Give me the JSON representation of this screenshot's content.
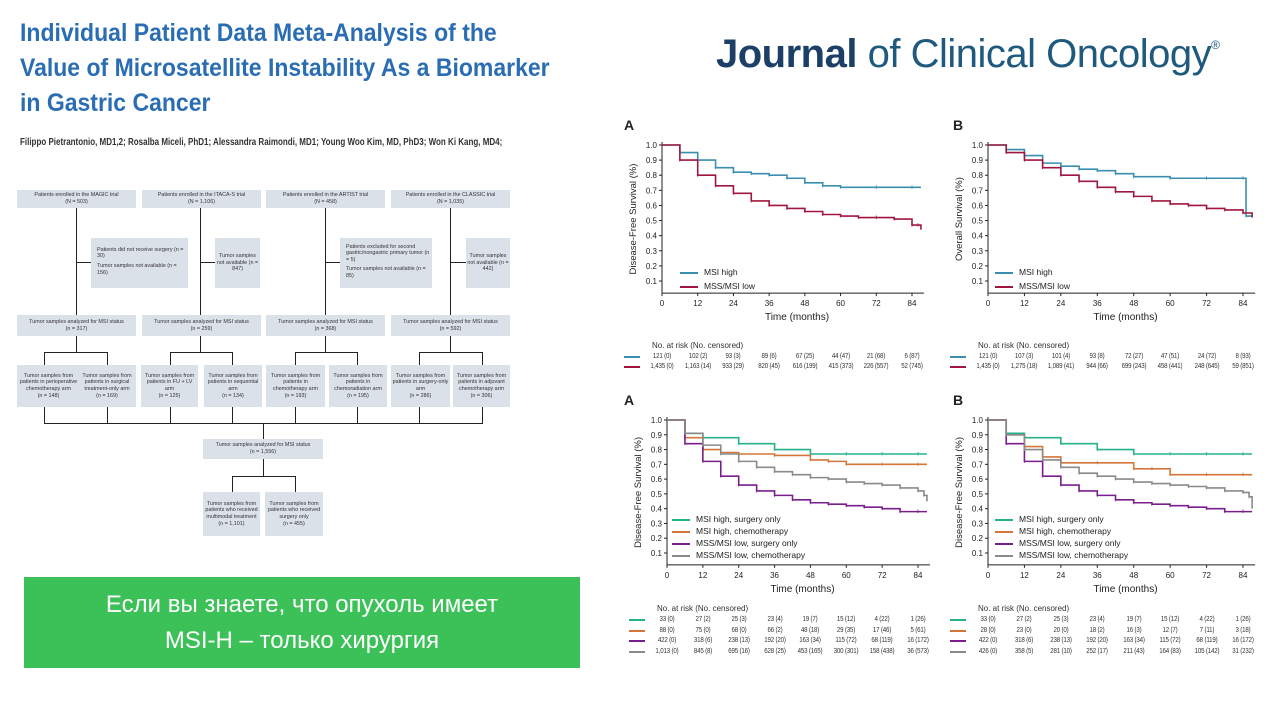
{
  "title": {
    "lines": [
      "Individual Patient Data Meta-Analysis of the",
      "Value of Microsatellite Instability As a Biomarker",
      "in Gastric Cancer"
    ]
  },
  "authors": "Filippo Pietrantonio, MD1,2; Rosalba Miceli, PhD1; Alessandra Raimondi, MD1; Young Woo Kim, MD, PhD3; Won Ki Kang, MD4;",
  "logo": {
    "bold": "Journal",
    "rest": " of Clinical Oncology",
    "mark": "®"
  },
  "flowchart": {
    "enrolled": [
      [
        "Patients enrolled in the MAGIC trial",
        "(N = 503)"
      ],
      [
        "Patients enrolled in the ITACA-S trial",
        "(N = 1,106)"
      ],
      [
        "Patients enrolled in the ARTIST trial",
        "(N = 458)"
      ],
      [
        "Patients enrolled in the CLASSIC trial",
        "(N = 1,035)"
      ]
    ],
    "excluded": [
      [
        "Patients did not receive surgery   (n = 30)",
        "Tumor samples not available   (n = 156)"
      ],
      [
        "Tumor samples not available (n = 847)"
      ],
      [
        "Patients excluded for second gastric/nongastric primary tumor   (n = 5)",
        "Tumor samples not available   (n = 85)"
      ],
      [
        "Tumor samples not available (n = 442)"
      ]
    ],
    "analyzed": [
      [
        "Tumor samples analyzed for MSI status",
        "(n = 317)"
      ],
      [
        "Tumor samples analyzed for MSI status",
        "(n = 259)"
      ],
      [
        "Tumor samples analyzed for MSI status",
        "(n = 368)"
      ],
      [
        "Tumor samples analyzed for MSI status",
        "(n = 592)"
      ]
    ],
    "arms": [
      [
        "Tumor samples from patients in perioperative chemotherapy arm",
        "(n = 148)"
      ],
      [
        "Tumor samples from patients in surgical treatment-only arm",
        "(n = 169)"
      ],
      [
        "Tumor samples from patients in FU + LV arm",
        "(n = 125)"
      ],
      [
        "Tumor samples from patients in sequential arm",
        "(n = 134)"
      ],
      [
        "Tumor samples from patients in chemotherapy arm",
        "(n = 193)"
      ],
      [
        "Tumor samples from patients in chemoradiation arm",
        "(n = 195)"
      ],
      [
        "Tumor samples from patients in surgery-only arm",
        "(n = 286)"
      ],
      [
        "Tumor samples from patients in adjuvant chemotherapy arm",
        "(n = 306)"
      ]
    ],
    "total": [
      "Tumor samples analyzed for MSI status",
      "(n = 1,556)"
    ],
    "final": [
      [
        "Tumor samples from patients who received multimodal treatment",
        "(n = 1,101)"
      ],
      [
        "Tumor samples from patients who received surgery only",
        "(n = 455)"
      ]
    ]
  },
  "banner": {
    "lines": [
      "Если вы знаете, что опухоль имеет",
      "MSI-H – только хирургия"
    ]
  },
  "chart_data": [
    {
      "panel": "A",
      "type": "line",
      "ylabel": "Disease-Free Survival (%)",
      "xlabel": "Time (months)",
      "xticks": [
        0,
        12,
        24,
        36,
        48,
        60,
        72,
        84
      ],
      "yticks": [
        0.1,
        0.2,
        0.3,
        0.4,
        0.5,
        0.6,
        0.7,
        0.8,
        0.9,
        1.0
      ],
      "xlim": [
        0,
        87
      ],
      "ylim": [
        0,
        1
      ],
      "risk_header": "No. at risk (No. censored)",
      "series": [
        {
          "name": "MSI high",
          "color": "#3a8fb0",
          "x": [
            0,
            6,
            12,
            18,
            24,
            30,
            36,
            42,
            48,
            54,
            60,
            72,
            84,
            87
          ],
          "y": [
            1,
            0.95,
            0.9,
            0.85,
            0.82,
            0.81,
            0.8,
            0.78,
            0.75,
            0.73,
            0.72,
            0.72,
            0.72,
            0.72
          ],
          "risk": [
            "121 (0)",
            "102 (2)",
            "93 (3)",
            "89 (6)",
            "67 (25)",
            "44 (47)",
            "21 (68)",
            "6 (87)"
          ]
        },
        {
          "name": "MSS/MSI low",
          "color": "#a0163f",
          "x": [
            0,
            6,
            12,
            18,
            24,
            30,
            36,
            42,
            48,
            54,
            60,
            66,
            72,
            78,
            84,
            86,
            87
          ],
          "y": [
            1,
            0.9,
            0.8,
            0.73,
            0.68,
            0.63,
            0.6,
            0.58,
            0.56,
            0.54,
            0.53,
            0.52,
            0.52,
            0.51,
            0.47,
            0.47,
            0.44
          ],
          "risk": [
            "1,435 (0)",
            "1,163 (14)",
            "933 (29)",
            "820 (45)",
            "616 (199)",
            "415 (373)",
            "226 (557)",
            "52 (745)"
          ]
        }
      ]
    },
    {
      "panel": "B",
      "type": "line",
      "ylabel": "Overall Survival (%)",
      "xlabel": "Time (months)",
      "xticks": [
        0,
        12,
        24,
        36,
        48,
        60,
        72,
        84
      ],
      "yticks": [
        0.1,
        0.2,
        0.3,
        0.4,
        0.5,
        0.6,
        0.7,
        0.8,
        0.9,
        1.0
      ],
      "xlim": [
        0,
        87
      ],
      "ylim": [
        0,
        1
      ],
      "risk_header": "No. at risk (No. censored)",
      "series": [
        {
          "name": "MSI high",
          "color": "#3a8fb0",
          "x": [
            0,
            6,
            12,
            18,
            24,
            30,
            36,
            42,
            48,
            60,
            72,
            84,
            85,
            87
          ],
          "y": [
            1,
            0.97,
            0.93,
            0.88,
            0.86,
            0.84,
            0.83,
            0.81,
            0.79,
            0.78,
            0.78,
            0.78,
            0.53,
            0.53
          ],
          "risk": [
            "121 (0)",
            "107 (3)",
            "101 (4)",
            "93 (8)",
            "72 (27)",
            "47 (51)",
            "24 (72)",
            "8 (93)"
          ]
        },
        {
          "name": "MSS/MSI low",
          "color": "#a0163f",
          "x": [
            0,
            6,
            12,
            18,
            24,
            30,
            36,
            42,
            48,
            54,
            60,
            66,
            72,
            78,
            84,
            87
          ],
          "y": [
            1,
            0.95,
            0.9,
            0.85,
            0.8,
            0.76,
            0.72,
            0.69,
            0.66,
            0.63,
            0.61,
            0.6,
            0.58,
            0.57,
            0.55,
            0.52
          ],
          "risk": [
            "1,435 (0)",
            "1,275 (18)",
            "1,089 (41)",
            "944 (66)",
            "699 (243)",
            "458 (441)",
            "248 (645)",
            "59 (851)"
          ]
        }
      ]
    },
    {
      "panel": "A",
      "type": "line",
      "ylabel": "Disease-Free Survival (%)",
      "xlabel": "Time (months)",
      "xticks": [
        0,
        12,
        24,
        36,
        48,
        60,
        72,
        84
      ],
      "yticks": [
        0.1,
        0.2,
        0.3,
        0.4,
        0.5,
        0.6,
        0.7,
        0.8,
        0.9,
        1.0
      ],
      "xlim": [
        0,
        87
      ],
      "ylim": [
        0,
        1
      ],
      "risk_header": "No. at risk (No. censored)",
      "series": [
        {
          "name": "MSI high, surgery only",
          "color": "#23b28a",
          "x": [
            0,
            6,
            12,
            24,
            36,
            48,
            60,
            72,
            84,
            87
          ],
          "y": [
            1,
            0.91,
            0.88,
            0.84,
            0.8,
            0.77,
            0.77,
            0.77,
            0.77,
            0.77
          ],
          "risk": [
            "33 (0)",
            "27 (2)",
            "25 (3)",
            "23 (4)",
            "19 (7)",
            "15 (12)",
            "4 (22)",
            "1 (26)"
          ]
        },
        {
          "name": "MSI high, chemotherapy",
          "color": "#d4763a",
          "x": [
            0,
            6,
            12,
            18,
            24,
            36,
            48,
            54,
            60,
            72,
            84,
            87
          ],
          "y": [
            1,
            0.88,
            0.8,
            0.78,
            0.77,
            0.76,
            0.73,
            0.72,
            0.7,
            0.7,
            0.7,
            0.7
          ],
          "risk": [
            "88 (0)",
            "75 (0)",
            "68 (0)",
            "66 (2)",
            "48 (18)",
            "29 (35)",
            "17 (46)",
            "5 (61)"
          ]
        },
        {
          "name": "MSS/MSI low, surgery only",
          "color": "#7a1e8e",
          "x": [
            0,
            6,
            12,
            18,
            24,
            30,
            36,
            42,
            48,
            54,
            60,
            66,
            72,
            78,
            84,
            87
          ],
          "y": [
            1,
            0.84,
            0.72,
            0.62,
            0.56,
            0.52,
            0.49,
            0.46,
            0.44,
            0.43,
            0.42,
            0.41,
            0.4,
            0.38,
            0.38,
            0.38
          ],
          "risk": [
            "422 (0)",
            "318 (6)",
            "238 (13)",
            "192 (20)",
            "163 (34)",
            "115 (72)",
            "68 (119)",
            "16 (172)"
          ]
        },
        {
          "name": "MSS/MSI low, chemotherapy",
          "color": "#8a8a8a",
          "x": [
            0,
            6,
            12,
            18,
            24,
            30,
            36,
            42,
            48,
            54,
            60,
            66,
            72,
            78,
            84,
            86,
            87
          ],
          "y": [
            1,
            0.91,
            0.83,
            0.77,
            0.72,
            0.68,
            0.65,
            0.63,
            0.61,
            0.6,
            0.58,
            0.57,
            0.56,
            0.54,
            0.52,
            0.49,
            0.45
          ],
          "risk": [
            "1,013 (0)",
            "845 (8)",
            "695 (16)",
            "628 (25)",
            "453 (165)",
            "300 (301)",
            "158 (438)",
            "36 (573)"
          ]
        }
      ]
    },
    {
      "panel": "B",
      "type": "line",
      "ylabel": "Disease-Free Survival (%)",
      "xlabel": "Time (months)",
      "xticks": [
        0,
        12,
        24,
        36,
        48,
        60,
        72,
        84
      ],
      "yticks": [
        0.1,
        0.2,
        0.3,
        0.4,
        0.5,
        0.6,
        0.7,
        0.8,
        0.9,
        1.0
      ],
      "xlim": [
        0,
        87
      ],
      "ylim": [
        0,
        1
      ],
      "risk_header": "No. at risk (No. censored)",
      "series": [
        {
          "name": "MSI high, surgery only",
          "color": "#23b28a",
          "x": [
            0,
            6,
            12,
            24,
            36,
            48,
            60,
            72,
            84,
            87
          ],
          "y": [
            1,
            0.91,
            0.88,
            0.84,
            0.8,
            0.77,
            0.77,
            0.77,
            0.77,
            0.77
          ],
          "risk": [
            "33 (0)",
            "27 (2)",
            "25 (3)",
            "23 (4)",
            "19 (7)",
            "15 (12)",
            "4 (22)",
            "1 (26)"
          ]
        },
        {
          "name": "MSI high, chemotherapy",
          "color": "#d4763a",
          "x": [
            0,
            6,
            12,
            18,
            24,
            36,
            48,
            54,
            60,
            72,
            84,
            87
          ],
          "y": [
            1,
            0.9,
            0.82,
            0.75,
            0.71,
            0.71,
            0.67,
            0.67,
            0.63,
            0.63,
            0.63,
            0.63
          ],
          "risk": [
            "28 (0)",
            "23 (0)",
            "20 (0)",
            "18 (2)",
            "16 (3)",
            "12 (7)",
            "7 (11)",
            "3 (18)"
          ]
        },
        {
          "name": "MSS/MSI low, surgery only",
          "color": "#7a1e8e",
          "x": [
            0,
            6,
            12,
            18,
            24,
            30,
            36,
            42,
            48,
            54,
            60,
            66,
            72,
            78,
            84,
            87
          ],
          "y": [
            1,
            0.84,
            0.72,
            0.62,
            0.56,
            0.52,
            0.49,
            0.46,
            0.44,
            0.43,
            0.42,
            0.41,
            0.4,
            0.38,
            0.38,
            0.38
          ],
          "risk": [
            "422 (0)",
            "318 (6)",
            "238 (13)",
            "192 (20)",
            "163 (34)",
            "115 (72)",
            "68 (119)",
            "16 (172)"
          ]
        },
        {
          "name": "MSS/MSI low, chemotherapy",
          "color": "#8a8a8a",
          "x": [
            0,
            6,
            12,
            18,
            24,
            30,
            36,
            42,
            48,
            54,
            60,
            66,
            72,
            78,
            84,
            86,
            87
          ],
          "y": [
            1,
            0.9,
            0.8,
            0.73,
            0.68,
            0.64,
            0.62,
            0.6,
            0.58,
            0.57,
            0.56,
            0.55,
            0.54,
            0.52,
            0.51,
            0.48,
            0.4
          ],
          "risk": [
            "426 (0)",
            "358 (5)",
            "281 (10)",
            "252 (17)",
            "211 (43)",
            "164 (83)",
            "105 (142)",
            "31 (232)"
          ]
        }
      ]
    }
  ]
}
